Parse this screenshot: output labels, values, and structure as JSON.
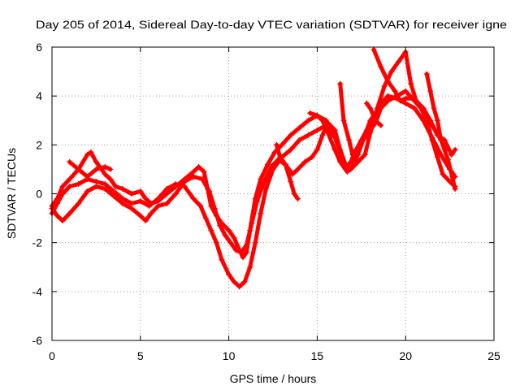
{
  "chart_data": {
    "type": "scatter",
    "title": "Day 205 of 2014, Sidereal Day-to-day VTEC variation (SDTVAR) for receiver igne",
    "xlabel": "GPS time / hours",
    "ylabel": "SDTVAR / TECUs",
    "xlim": [
      0,
      25
    ],
    "ylim": [
      -6,
      6
    ],
    "xticks": [
      "0",
      "5",
      "10",
      "15",
      "20",
      "25"
    ],
    "yticks": [
      "-6",
      "-4",
      "-2",
      "0",
      "2",
      "4",
      "6"
    ],
    "grid": true,
    "marker": "plus",
    "color": "#ff0000",
    "series": [
      {
        "points": [
          [
            0.0,
            -0.5
          ],
          [
            0.3,
            -0.2
          ],
          [
            0.6,
            0.3
          ],
          [
            1.0,
            0.6
          ],
          [
            1.5,
            1.0
          ],
          [
            2.0,
            1.6
          ],
          [
            2.2,
            1.7
          ],
          [
            2.5,
            1.3
          ],
          [
            3.0,
            0.8
          ],
          [
            3.3,
            0.6
          ],
          [
            3.6,
            0.3
          ],
          [
            4.0,
            0.2
          ],
          [
            4.5,
            0.0
          ],
          [
            5.0,
            0.1
          ],
          [
            5.3,
            -0.2
          ],
          [
            5.6,
            -0.4
          ],
          [
            6.0,
            -0.3
          ],
          [
            6.5,
            0.0
          ],
          [
            7.0,
            0.3
          ],
          [
            7.5,
            0.6
          ],
          [
            8.0,
            0.9
          ],
          [
            8.3,
            1.1
          ],
          [
            8.6,
            0.9
          ],
          [
            8.8,
            0.2
          ],
          [
            9.0,
            -0.5
          ],
          [
            9.3,
            -0.9
          ],
          [
            9.6,
            -1.2
          ],
          [
            10.0,
            -1.5
          ],
          [
            10.3,
            -1.8
          ],
          [
            10.6,
            -2.3
          ],
          [
            10.8,
            -2.6
          ],
          [
            11.0,
            -2.4
          ],
          [
            11.2,
            -1.5
          ],
          [
            11.5,
            -0.2
          ],
          [
            11.8,
            0.6
          ],
          [
            12.2,
            1.2
          ],
          [
            12.6,
            1.7
          ],
          [
            13.0,
            2.0
          ],
          [
            13.5,
            2.4
          ],
          [
            14.0,
            2.7
          ],
          [
            14.5,
            3.0
          ],
          [
            15.0,
            3.2
          ],
          [
            15.3,
            3.0
          ],
          [
            15.6,
            2.5
          ],
          [
            16.0,
            1.8
          ],
          [
            16.3,
            1.3
          ],
          [
            16.6,
            1.0
          ],
          [
            16.9,
            1.3
          ],
          [
            17.2,
            1.8
          ],
          [
            17.5,
            2.2
          ],
          [
            17.8,
            2.6
          ],
          [
            18.0,
            3.0
          ],
          [
            18.3,
            3.3
          ],
          [
            18.6,
            3.7
          ],
          [
            19.0,
            4.0
          ],
          [
            19.5,
            3.9
          ],
          [
            20.0,
            3.7
          ],
          [
            20.5,
            3.5
          ],
          [
            21.0,
            3.0
          ],
          [
            21.5,
            2.3
          ],
          [
            22.0,
            1.6
          ],
          [
            22.5,
            1.0
          ],
          [
            22.8,
            0.7
          ]
        ]
      },
      {
        "points": [
          [
            0.0,
            -0.8
          ],
          [
            0.3,
            -0.4
          ],
          [
            0.6,
            0.0
          ],
          [
            1.0,
            0.3
          ],
          [
            1.5,
            0.4
          ],
          [
            2.0,
            0.6
          ],
          [
            2.5,
            0.5
          ],
          [
            3.0,
            0.4
          ],
          [
            3.5,
            0.1
          ],
          [
            4.0,
            -0.2
          ],
          [
            4.5,
            -0.4
          ],
          [
            5.0,
            -0.3
          ],
          [
            5.5,
            -0.5
          ],
          [
            6.0,
            -0.2
          ],
          [
            6.5,
            0.2
          ],
          [
            7.0,
            0.4
          ],
          [
            7.5,
            0.3
          ],
          [
            8.0,
            -0.2
          ],
          [
            8.4,
            -0.5
          ],
          [
            8.7,
            -1.0
          ],
          [
            9.0,
            -1.5
          ],
          [
            9.3,
            -2.0
          ],
          [
            9.6,
            -2.7
          ],
          [
            10.0,
            -3.3
          ],
          [
            10.3,
            -3.6
          ],
          [
            10.6,
            -3.8
          ],
          [
            10.9,
            -3.6
          ],
          [
            11.2,
            -3.0
          ],
          [
            11.5,
            -2.0
          ],
          [
            11.8,
            -0.8
          ],
          [
            12.1,
            0.2
          ],
          [
            12.5,
            1.0
          ],
          [
            13.0,
            1.5
          ],
          [
            13.5,
            1.8
          ],
          [
            14.0,
            2.2
          ],
          [
            14.5,
            2.4
          ],
          [
            15.0,
            2.6
          ],
          [
            15.5,
            2.8
          ],
          [
            16.0,
            2.3
          ],
          [
            16.4,
            1.5
          ],
          [
            16.7,
            0.9
          ],
          [
            17.0,
            1.1
          ],
          [
            17.3,
            1.6
          ],
          [
            17.6,
            2.2
          ],
          [
            18.0,
            2.6
          ],
          [
            18.3,
            2.9
          ],
          [
            18.6,
            3.5
          ],
          [
            19.0,
            3.8
          ],
          [
            19.5,
            4.0
          ],
          [
            20.0,
            4.2
          ],
          [
            20.5,
            3.8
          ],
          [
            21.0,
            3.4
          ],
          [
            21.5,
            2.8
          ],
          [
            22.0,
            2.2
          ],
          [
            22.4,
            1.4
          ],
          [
            22.8,
            0.2
          ]
        ]
      },
      {
        "points": [
          [
            0.0,
            -0.6
          ],
          [
            0.3,
            -0.9
          ],
          [
            0.6,
            -1.1
          ],
          [
            1.0,
            -0.8
          ],
          [
            1.5,
            -0.4
          ],
          [
            2.0,
            0.1
          ],
          [
            2.5,
            0.3
          ],
          [
            3.0,
            0.2
          ],
          [
            3.5,
            -0.1
          ],
          [
            4.0,
            -0.4
          ],
          [
            4.5,
            -0.6
          ],
          [
            5.0,
            -0.9
          ],
          [
            5.3,
            -1.1
          ],
          [
            5.6,
            -0.8
          ],
          [
            6.0,
            -0.5
          ],
          [
            6.5,
            -0.4
          ],
          [
            7.0,
            0.0
          ],
          [
            7.5,
            0.5
          ],
          [
            8.0,
            0.7
          ],
          [
            8.5,
            0.6
          ],
          [
            8.9,
            0.1
          ],
          [
            9.2,
            -0.6
          ],
          [
            9.5,
            -1.3
          ],
          [
            9.8,
            -1.7
          ],
          [
            10.1,
            -2.0
          ],
          [
            10.4,
            -2.3
          ],
          [
            10.7,
            -2.4
          ],
          [
            11.0,
            -2.1
          ],
          [
            11.3,
            -1.2
          ],
          [
            11.6,
            -0.3
          ],
          [
            12.0,
            0.5
          ],
          [
            12.4,
            1.1
          ],
          [
            12.8,
            1.4
          ],
          [
            13.2,
            1.2
          ],
          [
            13.6,
            0.8
          ],
          [
            13.9,
            1.0
          ],
          [
            14.3,
            1.3
          ],
          [
            14.7,
            1.5
          ],
          [
            15.0,
            1.8
          ],
          [
            15.3,
            2.4
          ],
          [
            15.6,
            2.9
          ],
          [
            16.0,
            2.6
          ],
          [
            16.3,
            1.8
          ],
          [
            16.6,
            1.2
          ],
          [
            16.9,
            1.0
          ],
          [
            17.3,
            1.3
          ],
          [
            17.7,
            1.6
          ],
          [
            18.0,
            2.5
          ],
          [
            18.4,
            3.5
          ],
          [
            18.8,
            4.4
          ],
          [
            19.2,
            5.0
          ],
          [
            19.6,
            5.4
          ],
          [
            20.0,
            5.8
          ],
          [
            20.3,
            4.5
          ],
          [
            20.6,
            3.8
          ],
          [
            21.0,
            3.5
          ],
          [
            21.4,
            3.0
          ],
          [
            21.8,
            2.4
          ],
          [
            22.2,
            2.2
          ],
          [
            22.6,
            1.6
          ],
          [
            22.8,
            1.8
          ]
        ]
      },
      {
        "points": [
          [
            18.2,
            5.9
          ],
          [
            18.6,
            5.2
          ],
          [
            19.0,
            4.6
          ],
          [
            19.4,
            4.2
          ],
          [
            19.7,
            3.8
          ],
          [
            20.0,
            3.9
          ],
          [
            20.4,
            3.9
          ],
          [
            20.8,
            3.6
          ],
          [
            21.2,
            3.0
          ],
          [
            21.5,
            2.2
          ],
          [
            21.8,
            1.5
          ],
          [
            22.1,
            0.8
          ],
          [
            22.5,
            0.5
          ],
          [
            22.8,
            0.3
          ]
        ]
      },
      {
        "points": [
          [
            1.0,
            1.3
          ],
          [
            1.5,
            1.0
          ],
          [
            2.0,
            0.7
          ],
          [
            2.5,
            1.0
          ],
          [
            3.0,
            1.1
          ],
          [
            3.3,
            1.0
          ]
        ]
      },
      {
        "points": [
          [
            14.6,
            3.3
          ],
          [
            15.0,
            3.2
          ],
          [
            15.5,
            3.0
          ],
          [
            15.9,
            2.5
          ]
        ]
      },
      {
        "points": [
          [
            16.3,
            4.5
          ],
          [
            16.5,
            3.0
          ],
          [
            16.8,
            2.2
          ],
          [
            17.0,
            1.6
          ]
        ]
      },
      {
        "points": [
          [
            17.8,
            3.7
          ],
          [
            18.0,
            3.5
          ],
          [
            18.3,
            3.0
          ],
          [
            18.6,
            2.8
          ]
        ]
      },
      {
        "points": [
          [
            21.2,
            4.9
          ],
          [
            21.4,
            4.2
          ],
          [
            21.6,
            3.5
          ],
          [
            21.8,
            3.0
          ],
          [
            22.0,
            2.2
          ],
          [
            22.3,
            1.8
          ]
        ]
      },
      {
        "points": [
          [
            12.7,
            2.0
          ],
          [
            12.9,
            1.5
          ],
          [
            13.2,
            1.2
          ],
          [
            13.5,
            0.5
          ],
          [
            13.7,
            0.0
          ],
          [
            13.9,
            -0.2
          ]
        ]
      }
    ]
  }
}
